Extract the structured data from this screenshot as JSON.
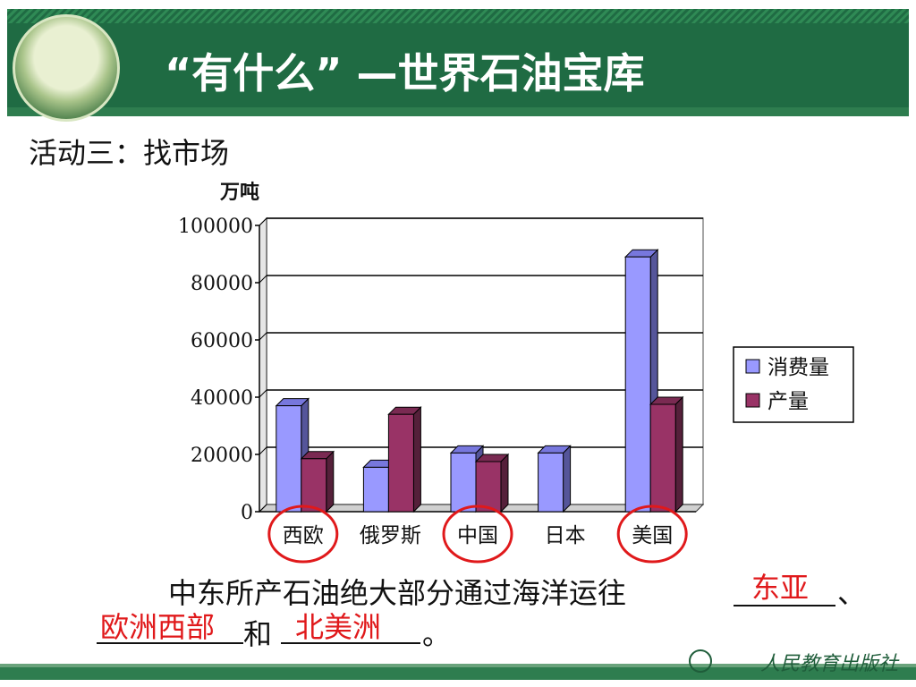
{
  "header": {
    "title": "“有什么” —世界石油宝库"
  },
  "activity_label": "活动三：找市场",
  "chart_data": {
    "type": "bar",
    "ylabel": "万吨",
    "ylim": [
      0,
      100000
    ],
    "yticks": [
      "0",
      "20000",
      "40000",
      "60000",
      "80000",
      "100000"
    ],
    "categories": [
      "西欧",
      "俄罗斯",
      "中国",
      "日本",
      "美国"
    ],
    "series": [
      {
        "name": "消费量",
        "values": [
          37000,
          15500,
          20500,
          20500,
          89000
        ],
        "color": "#9999ff"
      },
      {
        "name": "产量",
        "values": [
          18500,
          34000,
          17500,
          0,
          37500
        ],
        "color": "#993366"
      }
    ],
    "grid": true,
    "legend_position": "right",
    "highlighted_categories": [
      "西欧",
      "中国",
      "美国"
    ],
    "highlight_color": "#e0191b"
  },
  "question": {
    "line1_text": "中东所产石油绝大部分通过海洋运往",
    "line1_end": "、",
    "answer1": "东亚",
    "answer2": "欧洲西部",
    "connector": "和",
    "answer3": "北美洲",
    "line2_end": "。"
  },
  "footer": {
    "publisher": "人民教育出版社"
  }
}
